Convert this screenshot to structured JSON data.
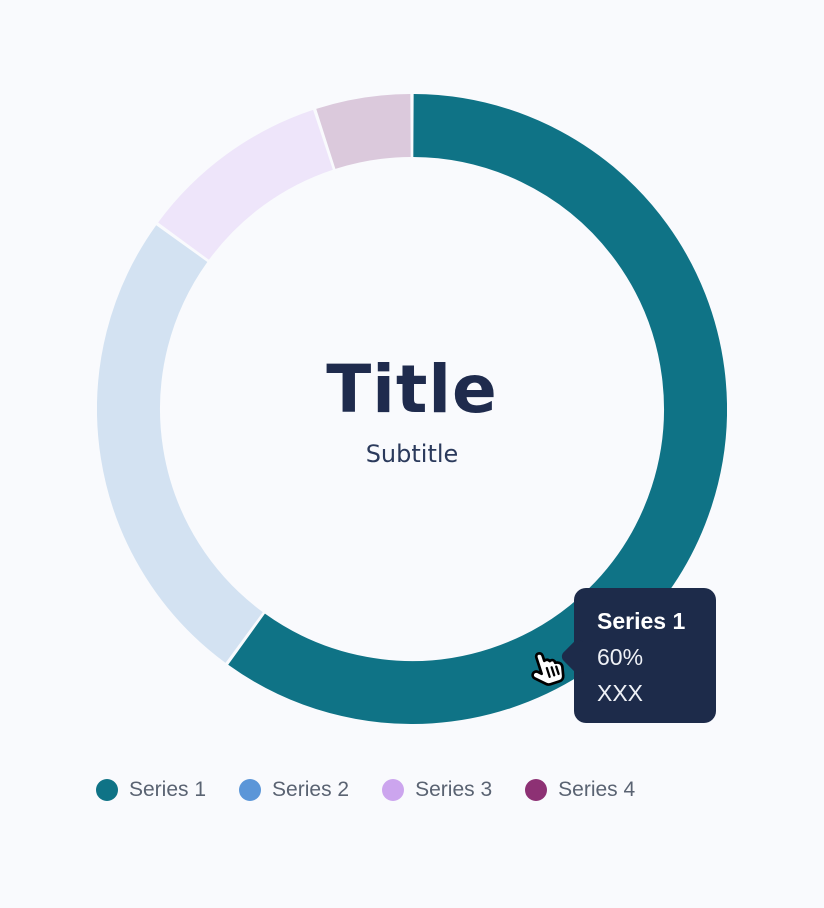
{
  "page": {
    "background": "#f9fafd"
  },
  "chart_data": {
    "type": "pie",
    "variant": "donut",
    "title": "Title",
    "subtitle": "Subtitle",
    "start_angle_deg": 0,
    "direction": "clockwise",
    "legend_position": "bottom",
    "hovered_series": "Series 1",
    "series": [
      {
        "name": "Series 1",
        "value": 60,
        "color": "#0f7386",
        "slice_color": "#0f7386",
        "state": "highlighted"
      },
      {
        "name": "Series 2",
        "value": 25,
        "color": "#5b96d8",
        "slice_color": "#d3e2f2",
        "state": "muted"
      },
      {
        "name": "Series 3",
        "value": 10,
        "color": "#cca5ee",
        "slice_color": "#eee5fa",
        "state": "muted"
      },
      {
        "name": "Series 4",
        "value": 5,
        "color": "#8d3174",
        "slice_color": "#dbc9dc",
        "state": "muted"
      }
    ]
  },
  "tooltip": {
    "series_label": "Series 1",
    "percent": "60%",
    "value": "XXX",
    "bg": "#1d2b4a",
    "text_color": "#ffffff"
  },
  "colors": {
    "title": "#1f2b4d",
    "subtitle": "#2b3a5c",
    "legend_label": "#5a6372"
  },
  "icons": {
    "cursor": "pointer-hand-cursor"
  }
}
